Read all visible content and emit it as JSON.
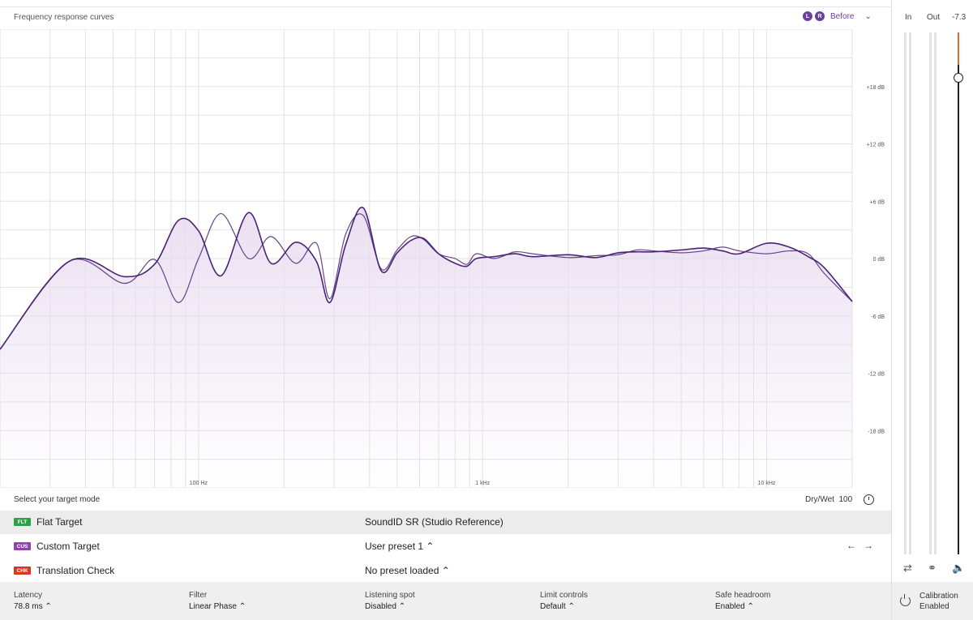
{
  "chart": {
    "title": "Frequency response curves",
    "channels": [
      "L",
      "R"
    ],
    "mode_label": "Before",
    "y_labels": [
      "+18 dB",
      "+12 dB",
      "+6 dB",
      "0 dB",
      "-6 dB",
      "-12 dB",
      "-18 dB"
    ],
    "x_labels": [
      "100 Hz",
      "1 kHz",
      "10 kHz"
    ],
    "colors": {
      "curve": "#4a2375",
      "fill": "#e8dcf0",
      "grid": "#e2e2e2"
    }
  },
  "chart_data": {
    "type": "line",
    "x_scale": "log",
    "xlim": [
      20,
      20000
    ],
    "ylim": [
      -24,
      24
    ],
    "x_ticks": [
      100,
      1000,
      10000
    ],
    "y_ticks": [
      18,
      12,
      6,
      0,
      -6,
      -12,
      -18
    ],
    "series": [
      {
        "values_x": [
          20,
          35,
          55,
          70,
          85,
          100,
          120,
          150,
          180,
          220,
          260,
          290,
          330,
          380,
          440,
          500,
          560,
          620,
          700,
          800,
          880,
          950,
          1100,
          1300,
          1500,
          2000,
          2500,
          3000,
          3500,
          4000,
          5000,
          6000,
          7000,
          8000,
          10000,
          12000,
          14000,
          16000,
          20000
        ],
        "values_y": [
          -9.5,
          -0.3,
          -1.9,
          -0.6,
          4,
          2.9,
          -1.8,
          4.8,
          -0.5,
          1.7,
          -0.3,
          -4.6,
          1.5,
          5.3,
          -1.3,
          0.6,
          1.9,
          2.1,
          0.5,
          -0.5,
          -0.8,
          0,
          0.2,
          0.5,
          0.2,
          0.4,
          0.1,
          0.6,
          0.7,
          0.7,
          0.9,
          1.1,
          0.8,
          0.5,
          1.6,
          1.2,
          0.2,
          -1,
          -4.5
        ]
      },
      {
        "values_x": [
          20,
          35,
          55,
          70,
          85,
          100,
          120,
          150,
          180,
          220,
          260,
          290,
          330,
          380,
          440,
          500,
          560,
          620,
          700,
          800,
          880,
          950,
          1100,
          1300,
          1500,
          2000,
          2500,
          3000,
          3500,
          4000,
          5000,
          6000,
          7000,
          8000,
          10000,
          12000,
          14000,
          16000,
          20000
        ],
        "values_y": [
          -9.5,
          -0.3,
          -2.6,
          -0.1,
          -4.6,
          0,
          4.7,
          0,
          2.3,
          -0.5,
          1.6,
          -4.2,
          2.6,
          4.5,
          -1.1,
          0.9,
          2.3,
          2,
          0.5,
          0,
          -0.6,
          0.5,
          0,
          0.7,
          0.5,
          0.1,
          0.3,
          0.4,
          0.9,
          0.8,
          0.6,
          0.8,
          1.2,
          0.8,
          0.5,
          0.8,
          0.5,
          -1.6,
          -4.5
        ]
      }
    ]
  },
  "meters": {
    "in_label": "In",
    "out_label": "Out",
    "gain_value": "-7.3",
    "fader_level_db": -7.3
  },
  "meter_icons": [
    "swap-icon",
    "stereo-link-icon",
    "speaker-icon"
  ],
  "target": {
    "header": "Select your target mode",
    "drywet_label": "Dry/Wet",
    "drywet_value": "100",
    "modes": [
      {
        "badge": "FLT",
        "badge_color": "#2ea043",
        "label": "Flat Target",
        "preset": "SoundID SR (Studio Reference)",
        "selected": true
      },
      {
        "badge": "CUS",
        "badge_color": "#8e44ad",
        "label": "Custom Target",
        "preset": "User preset 1",
        "selected": false
      },
      {
        "badge": "CHK",
        "badge_color": "#d9371e",
        "label": "Translation Check",
        "preset": "No preset loaded",
        "selected": false
      }
    ],
    "nav_prev": "←",
    "nav_next": "→"
  },
  "footer": {
    "latency": {
      "label": "Latency",
      "value": "78.8 ms"
    },
    "filter": {
      "label": "Filter",
      "value": "Linear Phase"
    },
    "listening": {
      "label": "Listening spot",
      "value": "Disabled"
    },
    "limit": {
      "label": "Limit controls",
      "value": "Default"
    },
    "headroom": {
      "label": "Safe headroom",
      "value": "Enabled"
    },
    "calibration": {
      "line1": "Calibration",
      "line2": "Enabled"
    },
    "caret": "⌃"
  }
}
